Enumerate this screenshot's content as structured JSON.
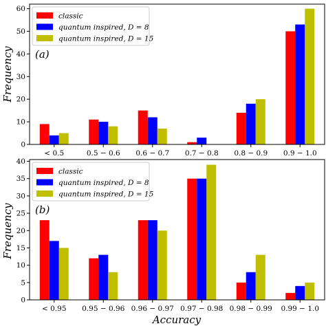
{
  "figure": {
    "ylabel": "Frequency",
    "xlabel": "Accuracy"
  },
  "chart_data": [
    {
      "type": "bar",
      "panel_label": "(a)",
      "categories": [
        "< 0.5",
        "0.5 − 0.6",
        "0.6 − 0.7",
        "0.7 − 0.8",
        "0.8 − 0.9",
        "0.9 − 1.0"
      ],
      "series": [
        {
          "name": "classic",
          "color": "#ff0000",
          "values": [
            9,
            11,
            15,
            1,
            14,
            50
          ]
        },
        {
          "name": "quantum inspired, D = 8",
          "color": "#0000ff",
          "values": [
            4,
            10,
            12,
            3,
            18,
            53
          ]
        },
        {
          "name": "quantum inspired, D = 15",
          "color": "#bfbf00",
          "values": [
            5,
            8,
            7,
            0,
            20,
            60
          ]
        }
      ],
      "ylabel": "Frequency",
      "xlabel": "",
      "ylim": [
        0,
        62
      ],
      "yticks": [
        0,
        10,
        20,
        30,
        40,
        50,
        60
      ],
      "grid": false,
      "legend": "top-left"
    },
    {
      "type": "bar",
      "panel_label": "(b)",
      "categories": [
        "< 0.95",
        "0.95 − 0.96",
        "0.96 − 0.97",
        "0.97 − 0.98",
        "0.98 − 0.99",
        "0.99 − 1.0"
      ],
      "series": [
        {
          "name": "classic",
          "color": "#ff0000",
          "values": [
            23,
            12,
            23,
            35,
            5,
            2
          ]
        },
        {
          "name": "quantum inspired, D = 8",
          "color": "#0000ff",
          "values": [
            17,
            13,
            23,
            35,
            8,
            4
          ]
        },
        {
          "name": "quantum inspired, D = 15",
          "color": "#bfbf00",
          "values": [
            15,
            8,
            20,
            39,
            13,
            5
          ]
        }
      ],
      "ylabel": "Frequency",
      "xlabel": "Accuracy",
      "ylim": [
        0,
        40.5
      ],
      "yticks": [
        0,
        5,
        10,
        15,
        20,
        25,
        30,
        35,
        40
      ],
      "grid": false,
      "legend": "top-left"
    }
  ]
}
